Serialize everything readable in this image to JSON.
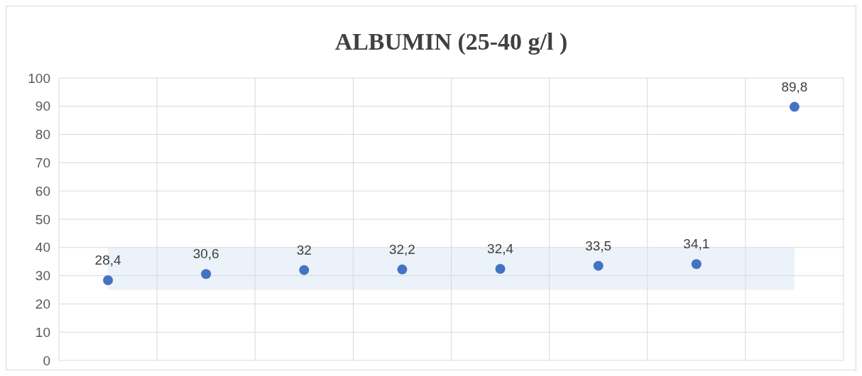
{
  "chart_data": {
    "type": "scatter",
    "title": "ALBUMIN (25-40 g/l )",
    "categories": [
      null,
      null,
      null,
      null,
      null,
      null,
      null,
      null
    ],
    "series": [
      {
        "color": "#4472c4",
        "values": [
          28.4,
          30.6,
          32,
          32.2,
          32.4,
          33.5,
          34.1,
          89.8
        ],
        "value_labels": [
          "28,4",
          "30,6",
          "32",
          "32,2",
          "32,4",
          "33,5",
          "34,1",
          "89,8"
        ]
      }
    ],
    "ylim": [
      0,
      100
    ],
    "yticks": [
      0,
      10,
      20,
      30,
      40,
      50,
      60,
      70,
      80,
      90,
      100
    ],
    "bands": [
      {
        "axis": "y",
        "from": 25,
        "to": 40,
        "color": "#ebf2fa"
      }
    ],
    "grid": true,
    "marker": "circle"
  }
}
